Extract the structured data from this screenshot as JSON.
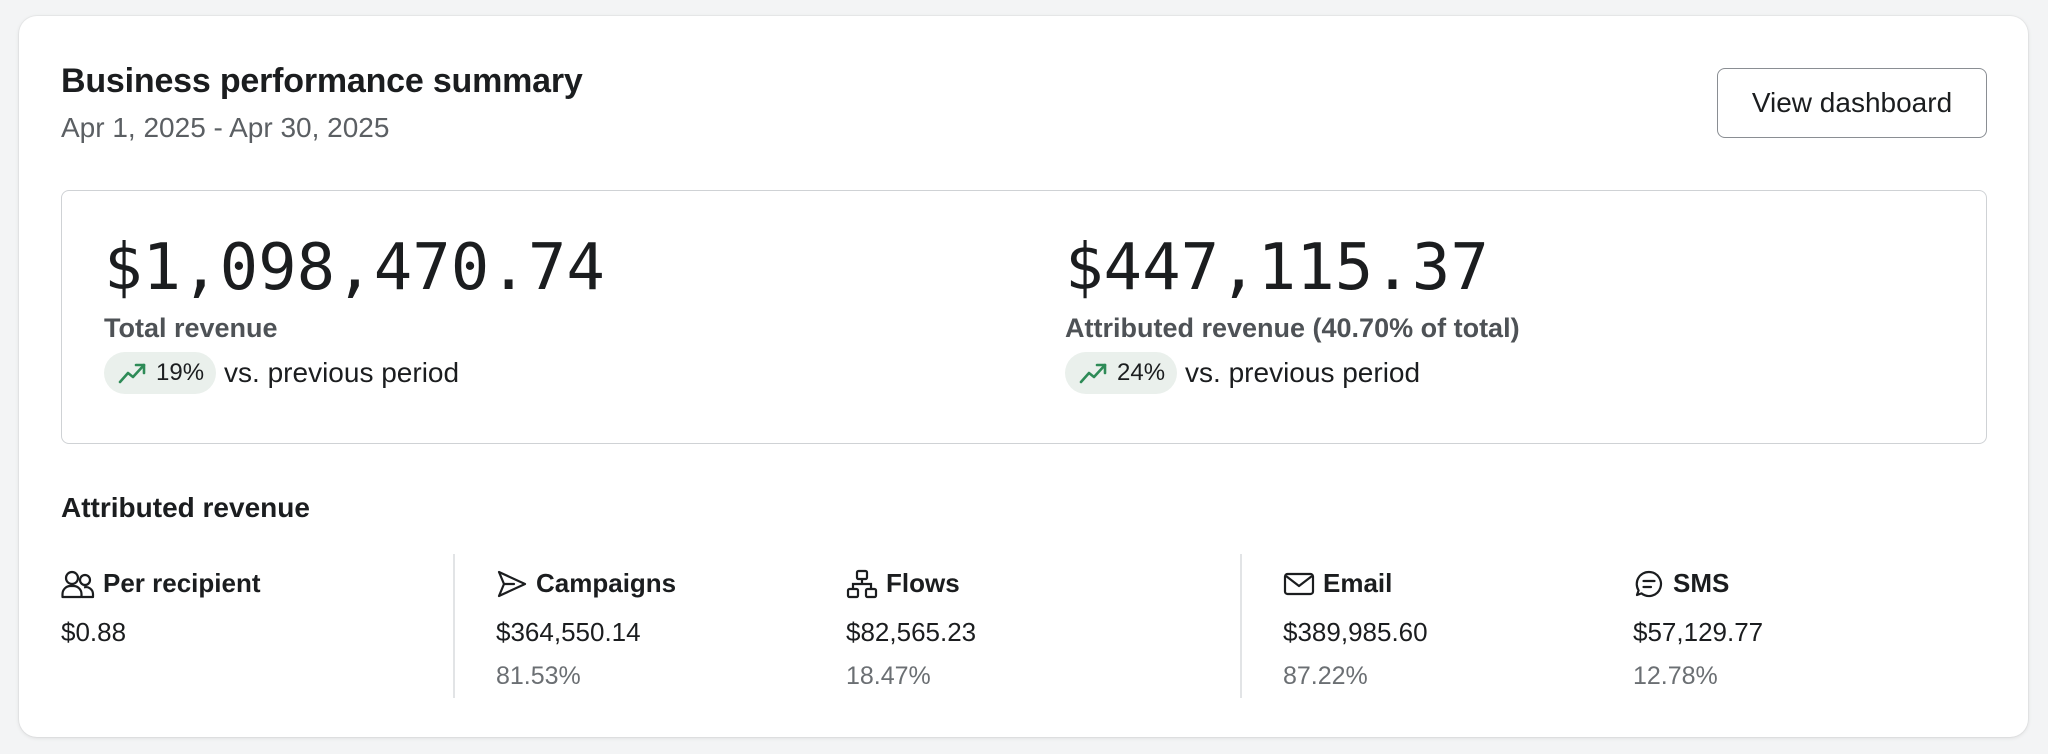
{
  "header": {
    "title": "Business performance summary",
    "date_range": "Apr 1, 2025 - Apr 30, 2025",
    "view_dashboard_label": "View dashboard"
  },
  "summary": {
    "total": {
      "value": "$1,098,470.74",
      "label": "Total revenue",
      "change": "19%",
      "comparison": "vs. previous period",
      "trend_icon": "trending-up-icon"
    },
    "attributed": {
      "value": "$447,115.37",
      "label": "Attributed revenue (40.70% of total)",
      "change": "24%",
      "comparison": "vs. previous period",
      "trend_icon": "trending-up-icon"
    }
  },
  "attributed_section": {
    "title": "Attributed revenue",
    "stats": [
      {
        "icon": "users-icon",
        "label": "Per recipient",
        "value": "$0.88",
        "percent": ""
      },
      {
        "icon": "send-icon",
        "label": "Campaigns",
        "value": "$364,550.14",
        "percent": "81.53%"
      },
      {
        "icon": "flow-icon",
        "label": "Flows",
        "value": "$82,565.23",
        "percent": "18.47%"
      },
      {
        "icon": "mail-icon",
        "label": "Email",
        "value": "$389,985.60",
        "percent": "87.22%"
      },
      {
        "icon": "sms-icon",
        "label": "SMS",
        "value": "$57,129.77",
        "percent": "12.78%"
      }
    ]
  },
  "colors": {
    "trend_up": "#2e8b57",
    "badge_bg": "#eaf0ec",
    "border": "#cfd2d5",
    "muted_text": "#6b6f73"
  }
}
